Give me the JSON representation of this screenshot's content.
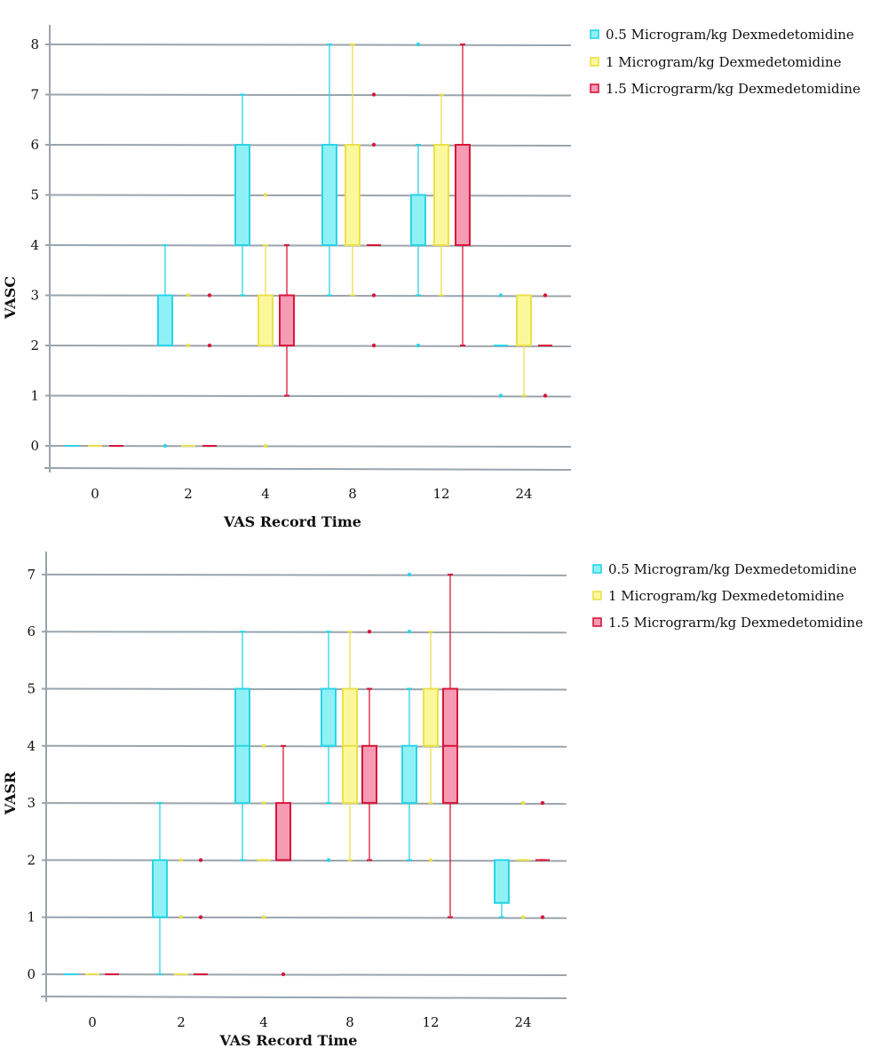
{
  "colors": {
    "s0": "#29d4e8",
    "s0_fill": "#8ff1f5",
    "s1": "#ece04a",
    "s1_fill": "#fbf89c",
    "s2": "#d8163a",
    "s2_fill": "#f59bb4",
    "grid": "#9aa4ac"
  },
  "chart_data": [
    {
      "type": "box",
      "xlabel": "VAS Record Time",
      "ylabel": "VASC",
      "categories": [
        "0",
        "2",
        "4",
        "8",
        "12",
        "24"
      ],
      "ylim": [
        0,
        8
      ],
      "grid": true,
      "legend_placement": "top-right",
      "series": [
        {
          "name": "0.5 Microgram/kg Dexmedetomidine",
          "boxes": [
            {
              "min": 0,
              "q1": 0,
              "median": 0,
              "q3": 0,
              "max": 0,
              "outliers": []
            },
            {
              "min": 2,
              "q1": 2,
              "median": 2,
              "q3": 3,
              "max": 4,
              "outliers": [
                0
              ]
            },
            {
              "min": 3,
              "q1": 4,
              "median": 4,
              "q3": 6,
              "max": 7,
              "outliers": []
            },
            {
              "min": 3,
              "q1": 4,
              "median": 4,
              "q3": 6,
              "max": 8,
              "outliers": []
            },
            {
              "min": 3,
              "q1": 4,
              "median": 4,
              "q3": 5,
              "max": 6,
              "outliers": [
                8,
                2
              ]
            },
            {
              "min": 2,
              "q1": 2,
              "median": 2,
              "q3": 2,
              "max": 2,
              "outliers": [
                3,
                1
              ]
            }
          ]
        },
        {
          "name": "1 Microgram/kg Dexmedetomidine",
          "boxes": [
            {
              "min": 0,
              "q1": 0,
              "median": 0,
              "q3": 0,
              "max": 0,
              "outliers": []
            },
            {
              "min": 0,
              "q1": 0,
              "median": 0,
              "q3": 0,
              "max": 0,
              "outliers": [
                3,
                2
              ]
            },
            {
              "min": 2,
              "q1": 2,
              "median": 2,
              "q3": 3,
              "max": 4,
              "outliers": [
                5,
                0
              ]
            },
            {
              "min": 3,
              "q1": 4,
              "median": 4,
              "q3": 6,
              "max": 8,
              "outliers": []
            },
            {
              "min": 3,
              "q1": 4,
              "median": 4,
              "q3": 6,
              "max": 7,
              "outliers": []
            },
            {
              "min": 1,
              "q1": 2,
              "median": 2,
              "q3": 3,
              "max": 3,
              "outliers": []
            }
          ]
        },
        {
          "name": "1.5 Micrograrm/kg Dexmedetomidine",
          "boxes": [
            {
              "min": 0,
              "q1": 0,
              "median": 0,
              "q3": 0,
              "max": 0,
              "outliers": []
            },
            {
              "min": 0,
              "q1": 0,
              "median": 0,
              "q3": 0,
              "max": 0,
              "outliers": [
                3,
                2
              ]
            },
            {
              "min": 1,
              "q1": 2,
              "median": 2,
              "q3": 3,
              "max": 4,
              "outliers": []
            },
            {
              "min": 4,
              "q1": 4,
              "median": 4,
              "q3": 4,
              "max": 4,
              "outliers": [
                7,
                6,
                3,
                2
              ]
            },
            {
              "min": 2,
              "q1": 4,
              "median": 4,
              "q3": 6,
              "max": 8,
              "outliers": []
            },
            {
              "min": 2,
              "q1": 2,
              "median": 2,
              "q3": 2,
              "max": 2,
              "outliers": [
                3,
                1
              ]
            }
          ]
        }
      ]
    },
    {
      "type": "box",
      "xlabel": "VAS Record Time",
      "ylabel": "VASR",
      "categories": [
        "0",
        "2",
        "4",
        "8",
        "12",
        "24"
      ],
      "ylim": [
        0,
        7
      ],
      "grid": true,
      "legend_placement": "top-right",
      "series": [
        {
          "name": "0.5 Microgram/kg Dexmedetomidine",
          "boxes": [
            {
              "min": 0,
              "q1": 0,
              "median": 0,
              "q3": 0,
              "max": 0,
              "outliers": []
            },
            {
              "min": 0,
              "q1": 1,
              "median": 1,
              "q3": 2,
              "max": 3,
              "outliers": []
            },
            {
              "min": 2,
              "q1": 3,
              "median": 4,
              "q3": 5,
              "max": 6,
              "outliers": []
            },
            {
              "min": 3,
              "q1": 4,
              "median": 4,
              "q3": 5,
              "max": 6,
              "outliers": [
                2
              ]
            },
            {
              "min": 2,
              "q1": 3,
              "median": 3,
              "q3": 4,
              "max": 5,
              "outliers": [
                7,
                6
              ]
            },
            {
              "min": 1,
              "q1": 1.25,
              "median": 1.25,
              "q3": 2,
              "max": 2,
              "outliers": []
            }
          ]
        },
        {
          "name": "1 Microgram/kg Dexmedetomidine",
          "boxes": [
            {
              "min": 0,
              "q1": 0,
              "median": 0,
              "q3": 0,
              "max": 0,
              "outliers": []
            },
            {
              "min": 0,
              "q1": 0,
              "median": 0,
              "q3": 0,
              "max": 0,
              "outliers": [
                2,
                1
              ]
            },
            {
              "min": 2,
              "q1": 2,
              "median": 2,
              "q3": 2,
              "max": 2,
              "outliers": [
                4,
                3,
                1
              ]
            },
            {
              "min": 2,
              "q1": 3,
              "median": 4,
              "q3": 5,
              "max": 6,
              "outliers": []
            },
            {
              "min": 3,
              "q1": 4,
              "median": 4,
              "q3": 5,
              "max": 6,
              "outliers": [
                2
              ]
            },
            {
              "min": 2,
              "q1": 2,
              "median": 2,
              "q3": 2,
              "max": 2,
              "outliers": [
                3,
                1
              ]
            }
          ]
        },
        {
          "name": "1.5 Micrograrm/kg Dexmedetomidine",
          "boxes": [
            {
              "min": 0,
              "q1": 0,
              "median": 0,
              "q3": 0,
              "max": 0,
              "outliers": []
            },
            {
              "min": 0,
              "q1": 0,
              "median": 0,
              "q3": 0,
              "max": 0,
              "outliers": [
                2,
                1
              ]
            },
            {
              "min": 2,
              "q1": 2,
              "median": 2,
              "q3": 3,
              "max": 4,
              "outliers": [
                0
              ]
            },
            {
              "min": 2,
              "q1": 3,
              "median": 3,
              "q3": 4,
              "max": 5,
              "outliers": [
                6
              ]
            },
            {
              "min": 1,
              "q1": 3,
              "median": 4,
              "q3": 5,
              "max": 7,
              "outliers": []
            },
            {
              "min": 2,
              "q1": 2,
              "median": 2,
              "q3": 2,
              "max": 2,
              "outliers": [
                3,
                1
              ]
            }
          ]
        }
      ]
    }
  ]
}
